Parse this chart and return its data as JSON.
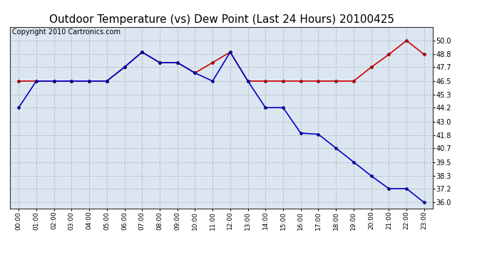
{
  "title": "Outdoor Temperature (vs) Dew Point (Last 24 Hours) 20100425",
  "copyright": "Copyright 2010 Cartronics.com",
  "x_labels": [
    "00:00",
    "01:00",
    "02:00",
    "03:00",
    "04:00",
    "05:00",
    "06:00",
    "07:00",
    "08:00",
    "09:00",
    "10:00",
    "11:00",
    "12:00",
    "13:00",
    "14:00",
    "15:00",
    "16:00",
    "17:00",
    "18:00",
    "19:00",
    "20:00",
    "21:00",
    "22:00",
    "23:00"
  ],
  "temp_values": [
    44.2,
    46.5,
    46.5,
    46.5,
    46.5,
    46.5,
    47.7,
    49.0,
    48.1,
    48.1,
    47.2,
    46.5,
    49.0,
    46.5,
    44.2,
    44.2,
    42.0,
    41.9,
    40.7,
    39.5,
    38.3,
    37.2,
    37.2,
    36.0
  ],
  "dew_values": [
    46.5,
    46.5,
    46.5,
    46.5,
    46.5,
    46.5,
    47.7,
    49.0,
    48.1,
    48.1,
    47.2,
    48.1,
    49.0,
    46.5,
    46.5,
    46.5,
    46.5,
    46.5,
    46.5,
    46.5,
    47.7,
    48.8,
    50.0,
    48.8
  ],
  "ylim_min": 35.5,
  "ylim_max": 51.2,
  "yticks": [
    36.0,
    37.2,
    38.3,
    39.5,
    40.7,
    41.8,
    43.0,
    44.2,
    45.3,
    46.5,
    47.7,
    48.8,
    50.0
  ],
  "temp_color": "#0000cc",
  "dew_color": "#cc0000",
  "bg_color": "#dce6f0",
  "grid_color": "#b0b8c8",
  "title_fontsize": 11,
  "copyright_fontsize": 7
}
